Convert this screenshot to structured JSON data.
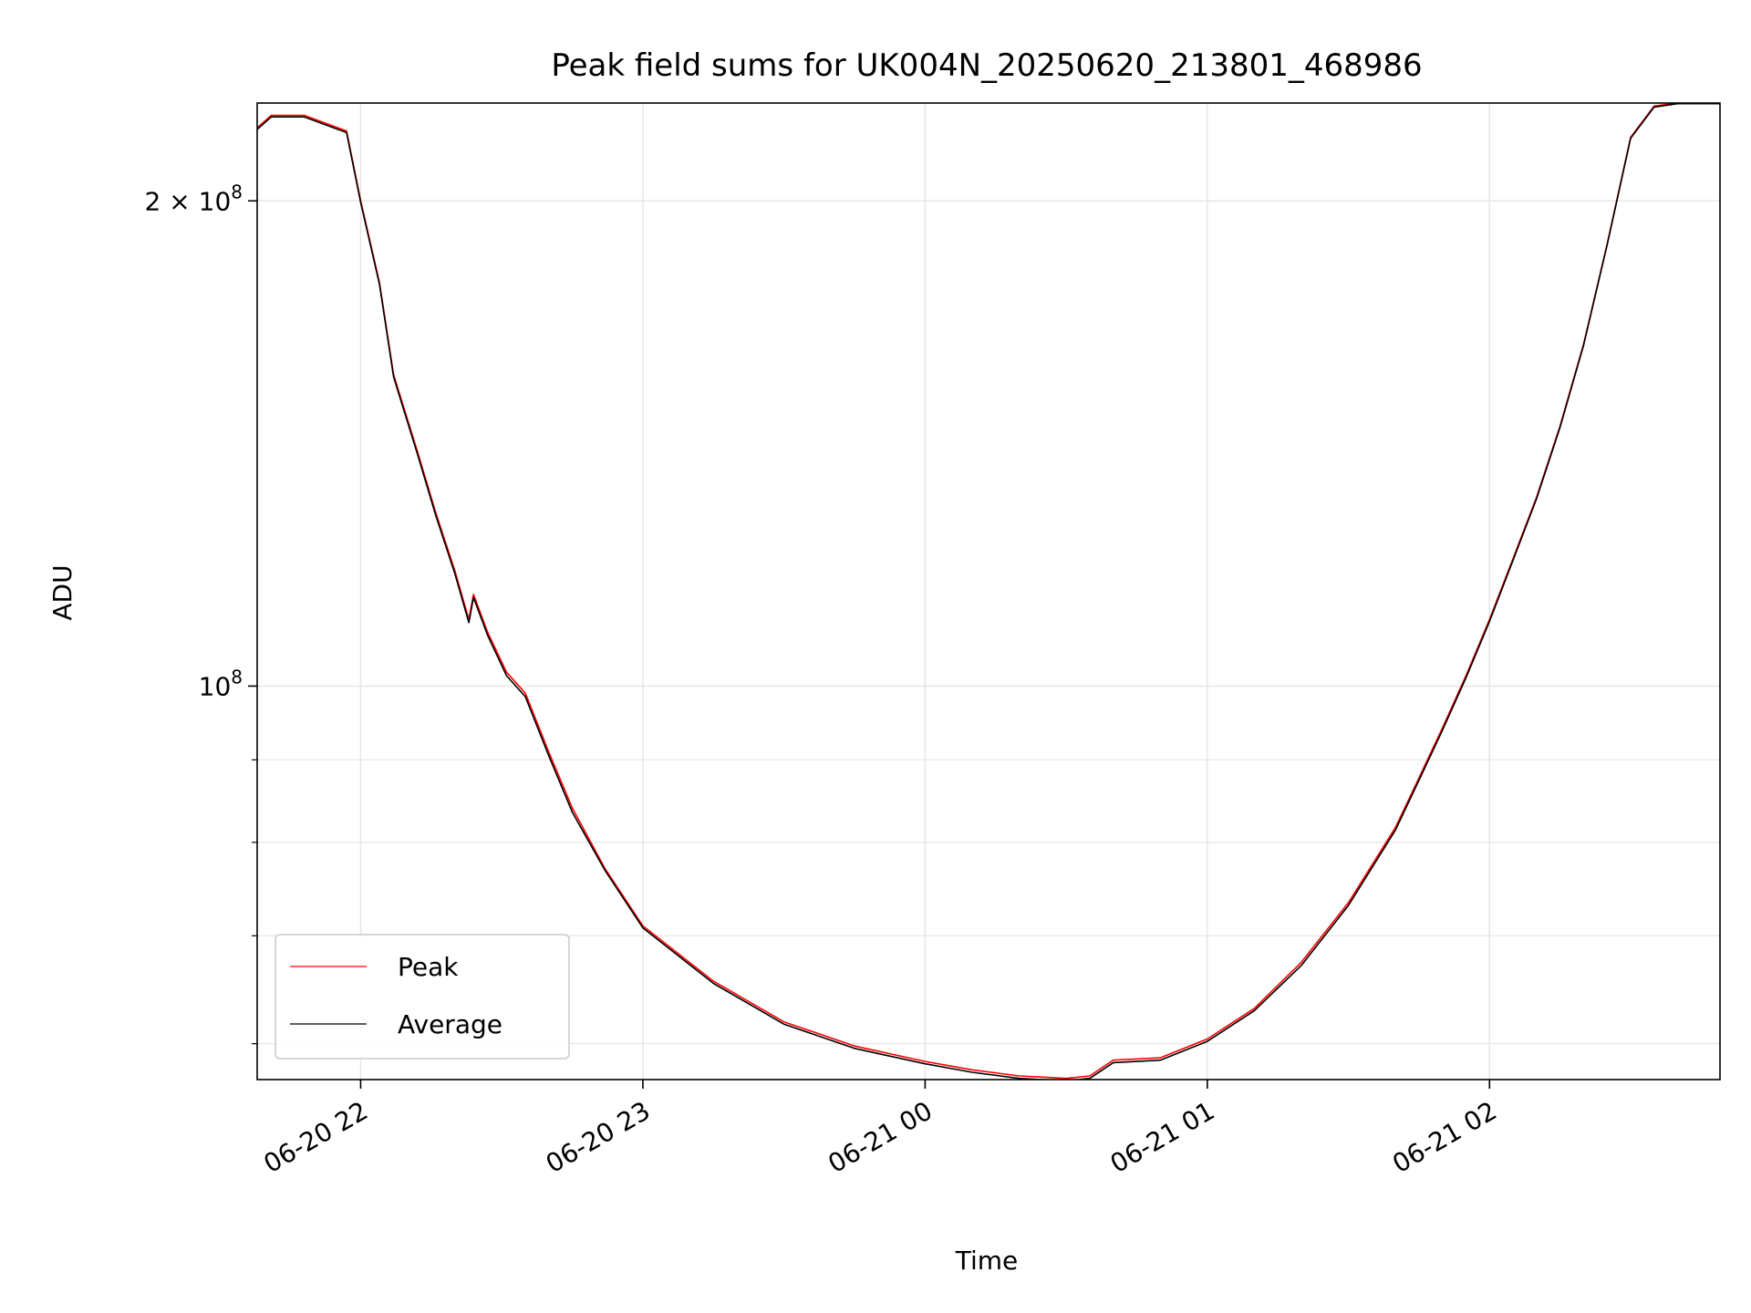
{
  "chart_data": {
    "type": "line",
    "title": "Peak field sums for UK004N_20250620_213801_468986",
    "xlabel": "Time",
    "ylabel": "ADU",
    "x_unit": "time of day, 2025-06-20/21",
    "xlim": [
      "2025-06-20 21:38",
      "2025-06-21 02:49"
    ],
    "ylim": [
      57000000,
      230000000
    ],
    "yscale": "log",
    "grid": true,
    "legend_position": "lower-left",
    "x_ticks": [
      {
        "value": "2025-06-20 22:00",
        "label": "06-20 22"
      },
      {
        "value": "2025-06-20 23:00",
        "label": "06-20 23"
      },
      {
        "value": "2025-06-21 00:00",
        "label": "06-21 00"
      },
      {
        "value": "2025-06-21 01:00",
        "label": "06-21 01"
      },
      {
        "value": "2025-06-21 02:00",
        "label": "06-21 02"
      }
    ],
    "y_ticks": [
      {
        "value": 200000000,
        "label_base": "2 × 10",
        "label_exp": "8"
      },
      {
        "value": 100000000,
        "label_base": "10",
        "label_exp": "8"
      }
    ],
    "y_minor_ticks": [
      60000000,
      70000000,
      80000000,
      90000000
    ],
    "series": [
      {
        "name": "Peak",
        "color": "#ff0000",
        "x": [
          "2025-06-20 21:38",
          "2025-06-20 21:41",
          "2025-06-20 21:48",
          "2025-06-20 21:57",
          "2025-06-20 22:00",
          "2025-06-20 22:04",
          "2025-06-20 22:07",
          "2025-06-20 22:12",
          "2025-06-20 22:16",
          "2025-06-20 22:20",
          "2025-06-20 22:23",
          "2025-06-20 22:24",
          "2025-06-20 22:27",
          "2025-06-20 22:31",
          "2025-06-20 22:35",
          "2025-06-20 22:40",
          "2025-06-20 22:45",
          "2025-06-20 22:52",
          "2025-06-20 23:00",
          "2025-06-20 23:15",
          "2025-06-20 23:30",
          "2025-06-20 23:45",
          "2025-06-21 00:00",
          "2025-06-21 00:10",
          "2025-06-21 00:20",
          "2025-06-21 00:25",
          "2025-06-21 00:30",
          "2025-06-21 00:35",
          "2025-06-21 00:40",
          "2025-06-21 00:50",
          "2025-06-21 01:00",
          "2025-06-21 01:10",
          "2025-06-21 01:20",
          "2025-06-21 01:30",
          "2025-06-21 01:40",
          "2025-06-21 01:45",
          "2025-06-21 01:50",
          "2025-06-21 01:55",
          "2025-06-21 02:00",
          "2025-06-21 02:05",
          "2025-06-21 02:10",
          "2025-06-21 02:15",
          "2025-06-21 02:20",
          "2025-06-21 02:25",
          "2025-06-21 02:30",
          "2025-06-21 02:35",
          "2025-06-21 02:40",
          "2025-06-21 02:49"
        ],
        "y": [
          222000000,
          226000000,
          226000000,
          221000000,
          200000000,
          178000000,
          156000000,
          140000000,
          128000000,
          118000000,
          110000000,
          114000000,
          108000000,
          102000000,
          99000000,
          91000000,
          84000000,
          77000000,
          71000000,
          65600000,
          61900000,
          59800000,
          58500000,
          57800000,
          57300000,
          57200000,
          57100000,
          57300000,
          58600000,
          58800000,
          60400000,
          63100000,
          67400000,
          73400000,
          81700000,
          87700000,
          94200000,
          101500000,
          110000000,
          120000000,
          131000000,
          145000000,
          163000000,
          188000000,
          219000000,
          229000000,
          230000000,
          230000000
        ]
      },
      {
        "name": "Average",
        "color": "#000000",
        "x": [
          "2025-06-20 21:38",
          "2025-06-20 21:41",
          "2025-06-20 21:48",
          "2025-06-20 21:57",
          "2025-06-20 22:00",
          "2025-06-20 22:04",
          "2025-06-20 22:07",
          "2025-06-20 22:12",
          "2025-06-20 22:16",
          "2025-06-20 22:20",
          "2025-06-20 22:23",
          "2025-06-20 22:24",
          "2025-06-20 22:27",
          "2025-06-20 22:31",
          "2025-06-20 22:35",
          "2025-06-20 22:40",
          "2025-06-20 22:45",
          "2025-06-20 22:52",
          "2025-06-20 23:00",
          "2025-06-20 23:15",
          "2025-06-20 23:30",
          "2025-06-20 23:45",
          "2025-06-21 00:00",
          "2025-06-21 00:10",
          "2025-06-21 00:20",
          "2025-06-21 00:25",
          "2025-06-21 00:30",
          "2025-06-21 00:35",
          "2025-06-21 00:40",
          "2025-06-21 00:50",
          "2025-06-21 01:00",
          "2025-06-21 01:10",
          "2025-06-21 01:20",
          "2025-06-21 01:30",
          "2025-06-21 01:40",
          "2025-06-21 01:45",
          "2025-06-21 01:50",
          "2025-06-21 01:55",
          "2025-06-21 02:00",
          "2025-06-21 02:05",
          "2025-06-21 02:10",
          "2025-06-21 02:15",
          "2025-06-21 02:20",
          "2025-06-21 02:25",
          "2025-06-21 02:30",
          "2025-06-21 02:35",
          "2025-06-21 02:40",
          "2025-06-21 02:49"
        ],
        "y": [
          221500000,
          225500000,
          225500000,
          220500000,
          199500000,
          177500000,
          155500000,
          139500000,
          127500000,
          117500000,
          109500000,
          113500000,
          107500000,
          101500000,
          98500000,
          90500000,
          83500000,
          76800000,
          70800000,
          65400000,
          61700000,
          59600000,
          58300000,
          57600000,
          57100000,
          57000000,
          56900000,
          57100000,
          58400000,
          58600000,
          60200000,
          62900000,
          67100000,
          73100000,
          81400000,
          87400000,
          93900000,
          101200000,
          109700000,
          119700000,
          130700000,
          144700000,
          162700000,
          187700000,
          218700000,
          228700000,
          229800000,
          229800000
        ]
      }
    ]
  }
}
